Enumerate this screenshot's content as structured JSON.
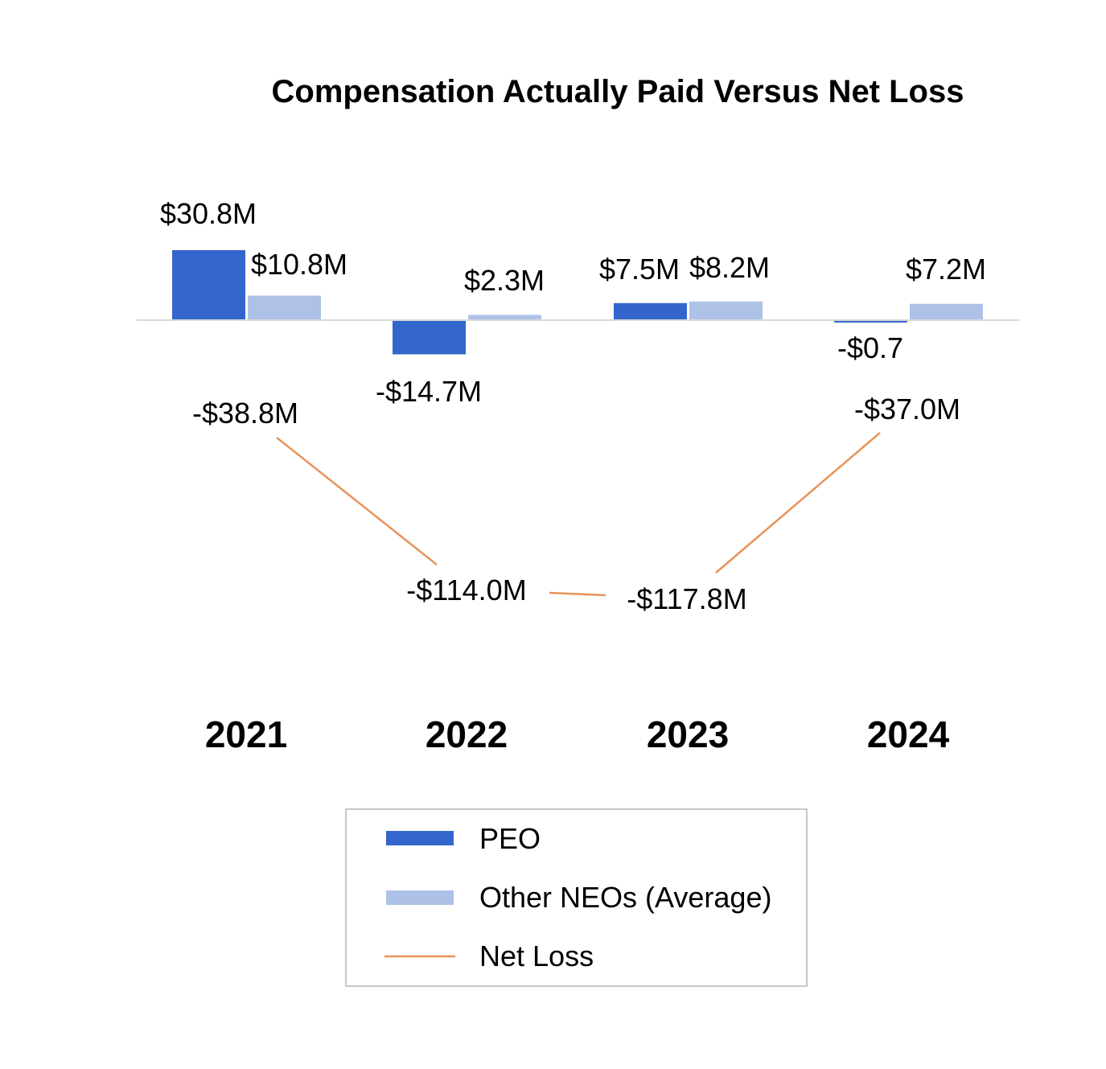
{
  "chart_data": {
    "type": "bar",
    "title": "Compensation Actually Paid Versus Net Loss",
    "categories": [
      "2021",
      "2022",
      "2023",
      "2024"
    ],
    "series": [
      {
        "name": "PEO",
        "kind": "bar",
        "color": "#3366cc",
        "values": [
          30.8,
          -14.7,
          7.5,
          -0.7
        ],
        "labels": [
          "$30.8M",
          "-$14.7M",
          "$7.5M",
          "-$0.7"
        ]
      },
      {
        "name": "Other NEOs (Average)",
        "kind": "bar",
        "color": "#aec2e8",
        "values": [
          10.8,
          2.3,
          8.2,
          7.2
        ],
        "labels": [
          "$10.8M",
          "$2.3M",
          "$8.2M",
          "$7.2M"
        ]
      },
      {
        "name": "Net Loss",
        "kind": "line",
        "color": "#e8935a",
        "values": [
          -38.8,
          -114.0,
          -117.8,
          -37.0
        ],
        "labels": [
          "-$38.8M",
          "-$114.0M",
          "-$117.8M",
          "-$37.0M"
        ]
      }
    ],
    "legend": "bottom",
    "grid": false
  }
}
